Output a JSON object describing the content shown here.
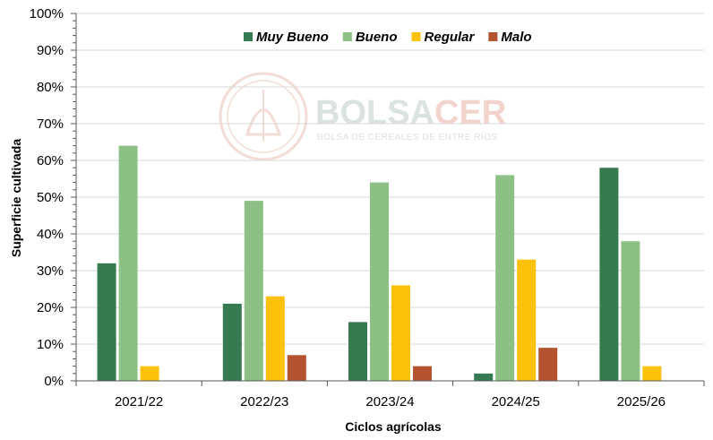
{
  "chart_data": {
    "type": "bar",
    "categories": [
      "2021/22",
      "2022/23",
      "2023/24",
      "2024/25",
      "2025/26"
    ],
    "series": [
      {
        "name": "Muy Bueno",
        "color": "#357a50",
        "values": [
          32,
          21,
          16,
          2,
          58
        ]
      },
      {
        "name": "Bueno",
        "color": "#8cc084",
        "values": [
          64,
          49,
          54,
          56,
          38
        ]
      },
      {
        "name": "Regular",
        "color": "#fcc10a",
        "values": [
          4,
          23,
          26,
          33,
          4
        ]
      },
      {
        "name": "Malo",
        "color": "#b3532f",
        "values": [
          0,
          7,
          4,
          9,
          0
        ]
      }
    ],
    "ylim": [
      0,
      100
    ],
    "yticks": [
      "0%",
      "10%",
      "20%",
      "30%",
      "40%",
      "50%",
      "60%",
      "70%",
      "80%",
      "90%",
      "100%"
    ],
    "xlabel": "Ciclos agrícolas",
    "ylabel": "Superficie cultivada",
    "legend_position": "top-center",
    "grid": true
  },
  "watermark": {
    "logo_icon": "bolsacer-seal-icon",
    "title_part1": "BOLSA",
    "title_part2": "CER",
    "subtitle": "BOLSA DE CEREALES DE ENTRE RÍOS",
    "color_primary": "#dbe3de",
    "color_accent": "#f2d4cc"
  }
}
